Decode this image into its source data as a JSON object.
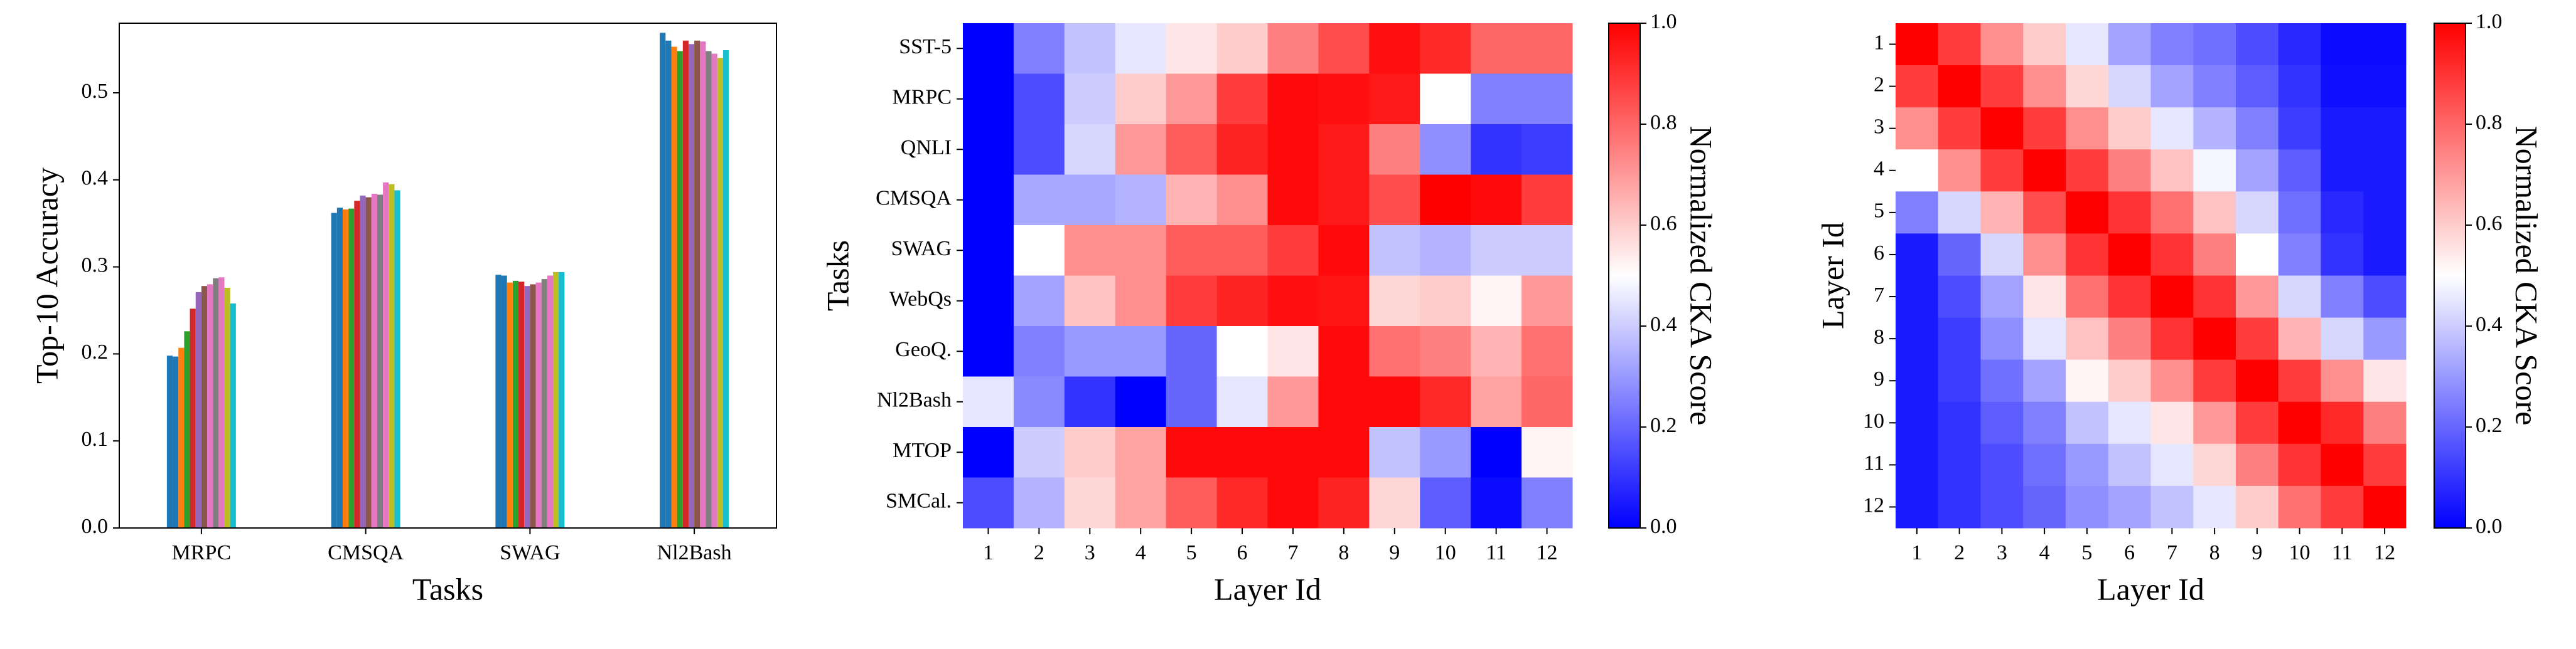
{
  "chart_data": [
    {
      "type": "bar",
      "xlabel": "Tasks",
      "ylabel": "Top-10 Accuracy",
      "categories": [
        "MRPC",
        "CMSQA",
        "SWAG",
        "Nl2Bash"
      ],
      "series": [
        {
          "color": "#1f77b4",
          "values": [
            0.198,
            0.362,
            0.291,
            0.569
          ]
        },
        {
          "color": "#1f77b4",
          "values": [
            0.197,
            0.368,
            0.29,
            0.56
          ]
        },
        {
          "color": "#ff7f0e",
          "values": [
            0.207,
            0.366,
            0.282,
            0.553
          ]
        },
        {
          "color": "#2ca02c",
          "values": [
            0.226,
            0.367,
            0.284,
            0.548
          ]
        },
        {
          "color": "#d62728",
          "values": [
            0.252,
            0.376,
            0.283,
            0.56
          ]
        },
        {
          "color": "#9467bd",
          "values": [
            0.271,
            0.382,
            0.278,
            0.556
          ]
        },
        {
          "color": "#8c564b",
          "values": [
            0.278,
            0.38,
            0.28,
            0.56
          ]
        },
        {
          "color": "#e377c2",
          "values": [
            0.28,
            0.384,
            0.282,
            0.559
          ]
        },
        {
          "color": "#7f7f7f",
          "values": [
            0.287,
            0.383,
            0.286,
            0.548
          ]
        },
        {
          "color": "#e377c2",
          "values": [
            0.288,
            0.397,
            0.29,
            0.545
          ]
        },
        {
          "color": "#bcbd22",
          "values": [
            0.276,
            0.395,
            0.294,
            0.54
          ]
        },
        {
          "color": "#17becf",
          "values": [
            0.258,
            0.388,
            0.294,
            0.549
          ]
        }
      ],
      "ylim": [
        0,
        0.58
      ],
      "yticks": [
        {
          "value": 0,
          "label": "0.0"
        },
        0.1,
        0.2,
        0.3,
        0.4,
        0.5
      ]
    },
    {
      "type": "heatmap",
      "xlabel": "Layer Id",
      "ylabel": "Tasks",
      "cmap": "bwr",
      "x": [
        1,
        2,
        3,
        4,
        5,
        6,
        7,
        8,
        9,
        10,
        11,
        12
      ],
      "y": [
        "SST-5",
        "MRPC",
        "QNLI",
        "CMSQA",
        "SWAG",
        "WebQs",
        "GeoQ.",
        "Nl2Bash",
        "MTOP",
        "SMCal."
      ],
      "values": [
        [
          0.0,
          0.25,
          0.38,
          0.45,
          0.55,
          0.6,
          0.75,
          0.85,
          0.97,
          0.92,
          0.8,
          0.8
        ],
        [
          0.0,
          0.15,
          0.4,
          0.6,
          0.7,
          0.88,
          0.98,
          0.97,
          0.95,
          0.5,
          0.25,
          0.25
        ],
        [
          0.0,
          0.15,
          0.42,
          0.7,
          0.82,
          0.93,
          0.98,
          0.95,
          0.75,
          0.28,
          0.1,
          0.12
        ],
        [
          0.0,
          0.33,
          0.33,
          0.35,
          0.65,
          0.72,
          0.98,
          0.95,
          0.85,
          1.0,
          0.98,
          0.88
        ],
        [
          0.0,
          0.5,
          0.72,
          0.72,
          0.82,
          0.82,
          0.88,
          0.98,
          0.38,
          0.35,
          0.4,
          0.4
        ],
        [
          0.0,
          0.32,
          0.62,
          0.72,
          0.88,
          0.93,
          0.97,
          0.96,
          0.58,
          0.6,
          0.52,
          0.7
        ],
        [
          0.0,
          0.25,
          0.3,
          0.3,
          0.2,
          0.5,
          0.55,
          0.98,
          0.78,
          0.75,
          0.65,
          0.78
        ],
        [
          0.45,
          0.27,
          0.1,
          0.0,
          0.2,
          0.45,
          0.7,
          0.98,
          0.98,
          0.92,
          0.68,
          0.8
        ],
        [
          0.0,
          0.4,
          0.6,
          0.68,
          0.98,
          0.98,
          0.98,
          0.98,
          0.38,
          0.3,
          0.0,
          0.52
        ],
        [
          0.15,
          0.35,
          0.58,
          0.68,
          0.82,
          0.92,
          0.98,
          0.93,
          0.58,
          0.18,
          0.02,
          0.25
        ]
      ],
      "colorbar": {
        "label": "Normalized CKA Score",
        "lim": [
          0,
          1
        ],
        "ticks": [
          {
            "value": 0,
            "label": "0.0"
          },
          0.2,
          0.4,
          0.6,
          0.8,
          {
            "value": 1,
            "label": "1.0"
          }
        ]
      }
    },
    {
      "type": "heatmap",
      "xlabel": "Layer Id",
      "ylabel": "Layer Id",
      "cmap": "bwr",
      "x": [
        1,
        2,
        3,
        4,
        5,
        6,
        7,
        8,
        9,
        10,
        11,
        12
      ],
      "y": [
        1,
        2,
        3,
        4,
        5,
        6,
        7,
        8,
        9,
        10,
        11,
        12
      ],
      "values": [
        [
          1.0,
          0.88,
          0.72,
          0.6,
          0.45,
          0.32,
          0.25,
          0.22,
          0.15,
          0.08,
          0.02,
          0.02
        ],
        [
          0.88,
          1.0,
          0.88,
          0.72,
          0.58,
          0.42,
          0.32,
          0.25,
          0.18,
          0.1,
          0.03,
          0.03
        ],
        [
          0.72,
          0.88,
          1.0,
          0.88,
          0.72,
          0.6,
          0.45,
          0.35,
          0.25,
          0.12,
          0.05,
          0.05
        ],
        [
          0.5,
          0.72,
          0.88,
          1.0,
          0.88,
          0.75,
          0.62,
          0.48,
          0.32,
          0.18,
          0.05,
          0.05
        ],
        [
          0.25,
          0.42,
          0.65,
          0.85,
          1.0,
          0.9,
          0.78,
          0.62,
          0.42,
          0.22,
          0.08,
          0.05
        ],
        [
          0.05,
          0.2,
          0.42,
          0.72,
          0.9,
          1.0,
          0.9,
          0.75,
          0.5,
          0.25,
          0.1,
          0.05
        ],
        [
          0.05,
          0.15,
          0.32,
          0.55,
          0.78,
          0.9,
          1.0,
          0.9,
          0.7,
          0.42,
          0.25,
          0.15
        ],
        [
          0.05,
          0.12,
          0.28,
          0.45,
          0.62,
          0.75,
          0.9,
          1.0,
          0.88,
          0.65,
          0.42,
          0.3
        ],
        [
          0.05,
          0.12,
          0.22,
          0.32,
          0.52,
          0.6,
          0.72,
          0.88,
          1.0,
          0.88,
          0.72,
          0.55
        ],
        [
          0.05,
          0.1,
          0.18,
          0.25,
          0.38,
          0.45,
          0.55,
          0.7,
          0.88,
          1.0,
          0.92,
          0.75
        ],
        [
          0.05,
          0.1,
          0.15,
          0.22,
          0.3,
          0.38,
          0.45,
          0.58,
          0.75,
          0.9,
          1.0,
          0.88
        ],
        [
          0.05,
          0.1,
          0.15,
          0.2,
          0.28,
          0.32,
          0.38,
          0.45,
          0.6,
          0.78,
          0.88,
          1.0
        ]
      ],
      "colorbar": {
        "label": "Normalized CKA Score",
        "lim": [
          0,
          1
        ],
        "ticks": [
          {
            "value": 0,
            "label": "0.0"
          },
          0.2,
          0.4,
          0.6,
          0.8,
          {
            "value": 1,
            "label": "1.0"
          }
        ]
      }
    }
  ]
}
